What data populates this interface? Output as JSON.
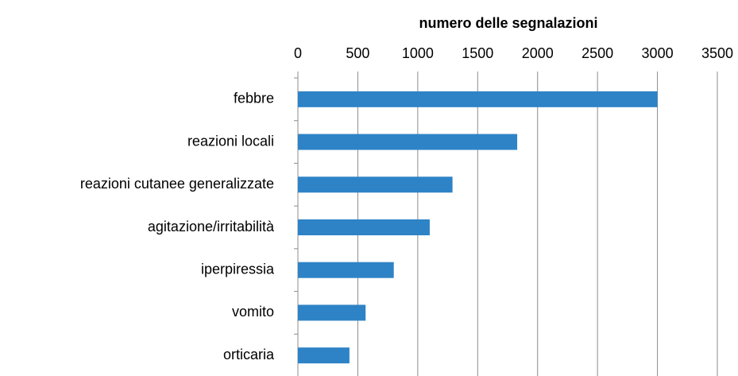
{
  "chart_data": {
    "type": "bar",
    "orientation": "horizontal",
    "title": "numero delle segnalazioni",
    "categories": [
      "febbre",
      "reazioni locali",
      "reazioni cutanee generalizzate",
      "agitazione/irritabilità",
      "iperpiressia",
      "vomito",
      "orticaria"
    ],
    "values": [
      3000,
      1830,
      1290,
      1100,
      800,
      565,
      430
    ],
    "color": "#2e83c6",
    "xlim": [
      0,
      3500
    ],
    "xticks": [
      0,
      500,
      1000,
      1500,
      2000,
      2500,
      3000,
      3500
    ],
    "grid": true
  }
}
